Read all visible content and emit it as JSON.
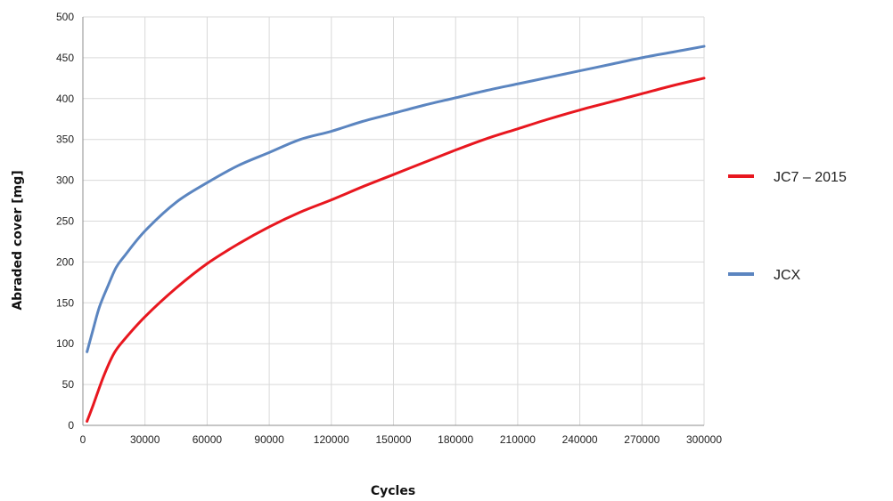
{
  "chart_data": {
    "type": "line",
    "title": "",
    "xlabel": "Cycles",
    "ylabel": "Abraded cover [mg]",
    "xlim": [
      0,
      300000
    ],
    "ylim": [
      0,
      500
    ],
    "x_ticks": [
      0,
      30000,
      60000,
      90000,
      120000,
      150000,
      180000,
      210000,
      240000,
      270000,
      300000
    ],
    "x_tick_labels": [
      "0",
      "30000",
      "60000",
      "90000",
      "120000",
      "150000",
      "180000",
      "210000",
      "240000",
      "270000",
      "300000"
    ],
    "y_ticks": [
      0,
      50,
      100,
      150,
      200,
      250,
      300,
      350,
      400,
      450,
      500
    ],
    "y_tick_labels": [
      "0",
      "50",
      "100",
      "150",
      "200",
      "250",
      "300",
      "350",
      "400",
      "450",
      "500"
    ],
    "grid": true,
    "legend_position": "right",
    "series": [
      {
        "name": "JC7 – 2015",
        "color": "#e8171f",
        "x": [
          2000,
          5000,
          10000,
          15000,
          20000,
          30000,
          45000,
          60000,
          75000,
          90000,
          105000,
          120000,
          135000,
          150000,
          165000,
          180000,
          195000,
          210000,
          225000,
          240000,
          255000,
          270000,
          285000,
          300000
        ],
        "y": [
          5,
          25,
          60,
          88,
          105,
          133,
          168,
          198,
          222,
          243,
          261,
          276,
          292,
          307,
          322,
          337,
          351,
          363,
          375,
          386,
          396,
          406,
          416,
          425
        ]
      },
      {
        "name": "JCX",
        "color": "#5b85c0",
        "x": [
          2000,
          5000,
          8000,
          12000,
          16000,
          20000,
          30000,
          45000,
          60000,
          75000,
          90000,
          105000,
          120000,
          135000,
          150000,
          165000,
          180000,
          195000,
          210000,
          225000,
          240000,
          255000,
          270000,
          285000,
          300000
        ],
        "y": [
          90,
          118,
          145,
          170,
          193,
          207,
          238,
          273,
          297,
          318,
          334,
          350,
          360,
          372,
          382,
          392,
          401,
          410,
          418,
          426,
          434,
          442,
          450,
          457,
          464
        ]
      }
    ]
  }
}
